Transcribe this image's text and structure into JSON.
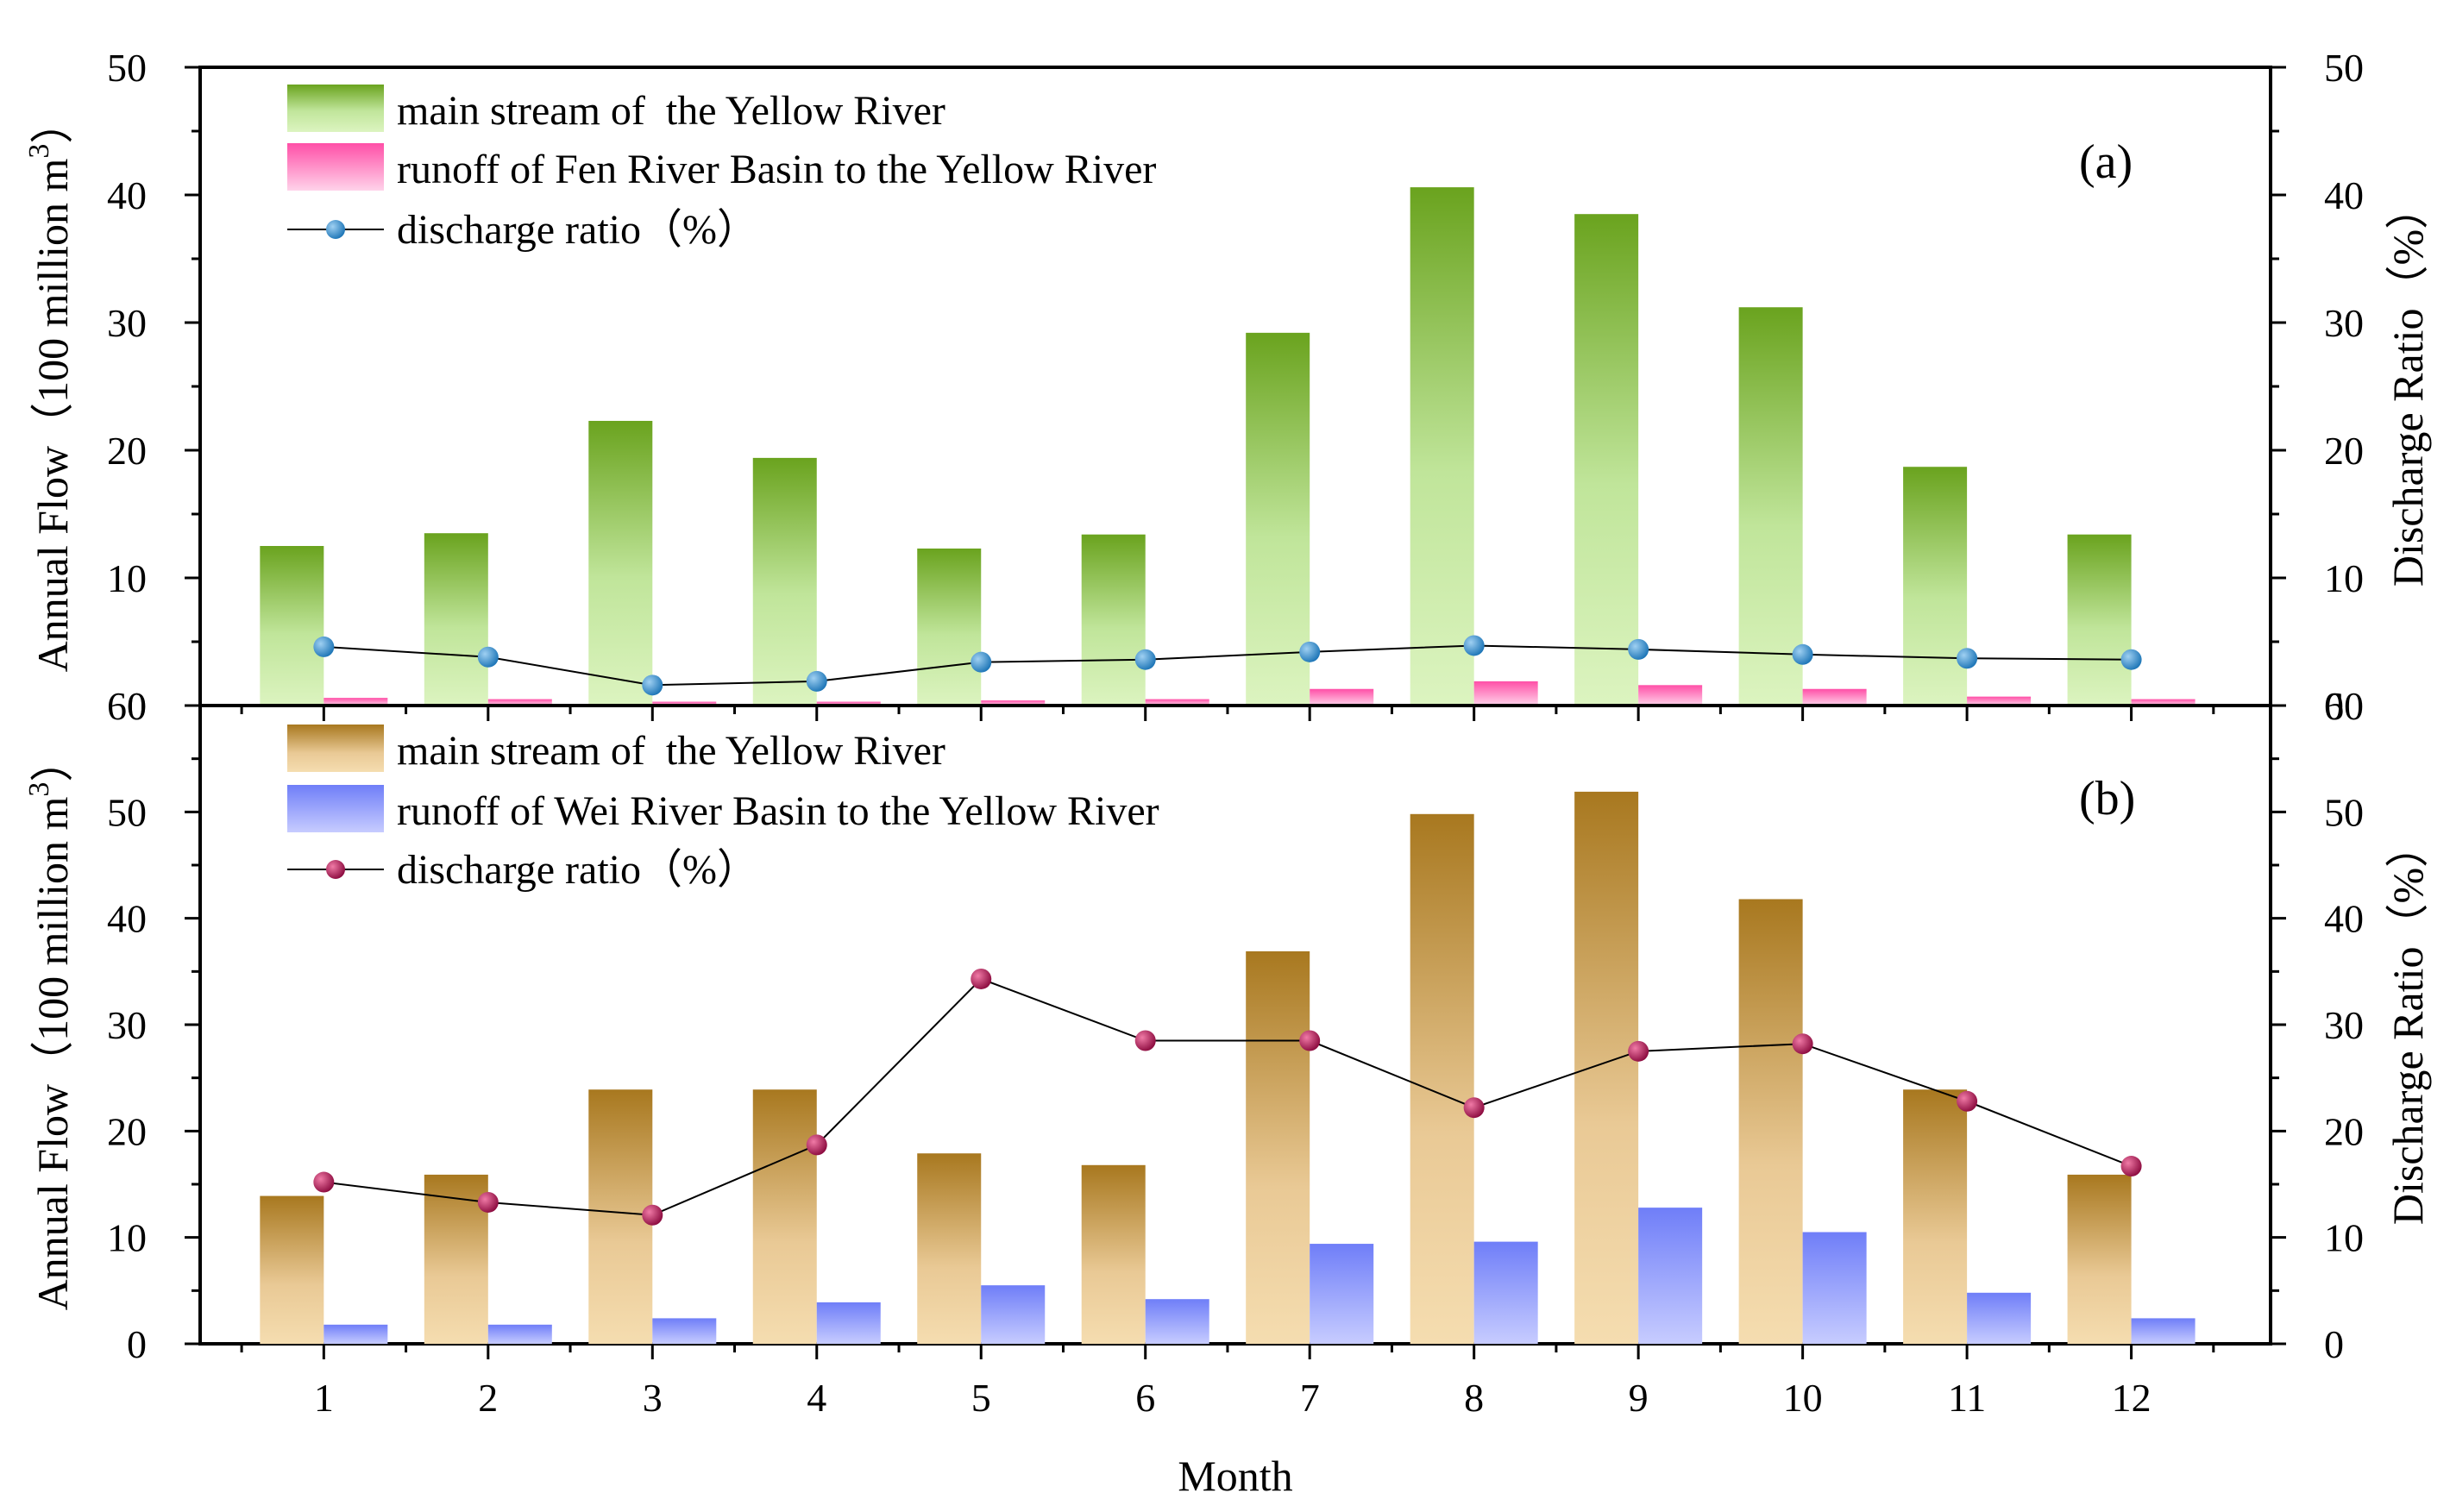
{
  "chart_data": [
    {
      "type": "bar",
      "panel_label": "(a)",
      "categories": [
        "1",
        "2",
        "3",
        "4",
        "5",
        "6",
        "7",
        "8",
        "9",
        "10",
        "11",
        "12"
      ],
      "series": [
        {
          "name": "main stream of  the Yellow River",
          "kind": "bar",
          "axis": "left",
          "values": [
            12.5,
            13.5,
            22.3,
            19.4,
            12.3,
            13.4,
            29.2,
            40.6,
            38.5,
            31.2,
            18.7,
            13.4
          ]
        },
        {
          "name": "runoff of Fen River Basin to the Yellow River",
          "kind": "bar",
          "axis": "left",
          "values": [
            0.6,
            0.5,
            0.3,
            0.3,
            0.4,
            0.5,
            1.3,
            1.9,
            1.6,
            1.3,
            0.7,
            0.5
          ]
        },
        {
          "name": "discharge ratio（%）",
          "kind": "line",
          "axis": "right",
          "values": [
            4.6,
            3.8,
            1.6,
            1.9,
            3.4,
            3.6,
            4.2,
            4.7,
            4.4,
            4.0,
            3.7,
            3.6
          ]
        }
      ],
      "ylabel": "Annual Flow（100 million m³）",
      "ylabel_main": "Annual Flow（100 million m",
      "ylabel_sup": "3",
      "ylabel_end": "）",
      "y2label": "Discharge Ratio（%）",
      "ylim": [
        0,
        50
      ],
      "y2lim": [
        0,
        50
      ],
      "yticks": [
        0,
        10,
        20,
        30,
        40,
        50
      ],
      "y2ticks": [
        0,
        10,
        20,
        30,
        40,
        50
      ],
      "legend_position": "top-left",
      "colors": {
        "bar1_top": "#6aa31e",
        "bar1_bottom": "#dcf4c0",
        "bar2_top": "#ff4fa7",
        "bar2_bottom": "#ffd3ea",
        "marker": "#1b74b6",
        "marker_hi": "#9fd0f2"
      }
    },
    {
      "type": "bar",
      "panel_label": "(b)",
      "categories": [
        "1",
        "2",
        "3",
        "4",
        "5",
        "6",
        "7",
        "8",
        "9",
        "10",
        "11",
        "12"
      ],
      "series": [
        {
          "name": "main stream of  the Yellow River",
          "kind": "bar",
          "axis": "left",
          "values": [
            13.9,
            15.9,
            23.9,
            23.9,
            17.9,
            16.8,
            36.9,
            49.8,
            51.9,
            41.8,
            23.9,
            15.9
          ]
        },
        {
          "name": "runoff of Wei River Basin to the Yellow River",
          "kind": "bar",
          "axis": "left",
          "values": [
            1.8,
            1.8,
            2.4,
            3.9,
            5.5,
            4.2,
            9.4,
            9.6,
            12.8,
            10.5,
            4.8,
            2.4
          ]
        },
        {
          "name": "discharge ratio（%）",
          "kind": "line",
          "axis": "right",
          "values": [
            15.2,
            13.3,
            12.1,
            18.7,
            34.3,
            28.5,
            28.5,
            22.2,
            27.5,
            28.2,
            22.8,
            16.7
          ]
        }
      ],
      "ylabel": "Annual Flow（100 million m³）",
      "ylabel_main": "Annual Flow（100 million m",
      "ylabel_sup": "3",
      "ylabel_end": "）",
      "y2label": "Discharge Ratio（%）",
      "ylim": [
        0,
        60
      ],
      "y2lim": [
        0,
        60
      ],
      "yticks": [
        0,
        10,
        20,
        30,
        40,
        50,
        60
      ],
      "y2ticks": [
        0,
        10,
        20,
        30,
        40,
        50,
        60
      ],
      "legend_position": "top-left",
      "xlabel": "Month",
      "colors": {
        "bar1_top": "#a8781f",
        "bar1_bottom": "#f5ddb0",
        "bar2_top": "#6f7ef8",
        "bar2_bottom": "#c7ccff",
        "marker": "#8b0a3e",
        "marker_hi": "#f07aa6"
      }
    }
  ]
}
